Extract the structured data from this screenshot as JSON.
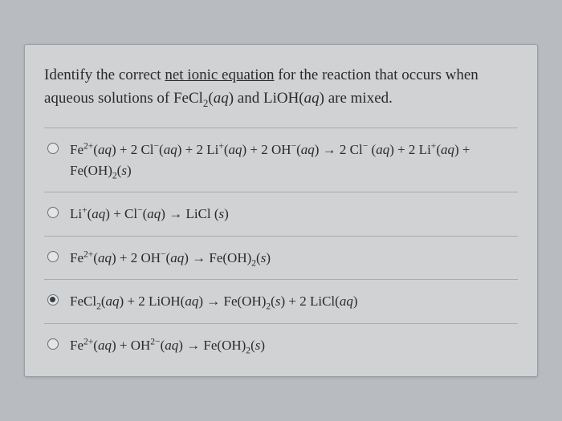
{
  "card": {
    "background_color": "#d0d2d4",
    "border_color": "#9aa0a6",
    "divider_color": "#a8adb2",
    "text_color": "#2a2a2a"
  },
  "page_background": "#b8bbbf",
  "question": {
    "pre": "Identify the correct ",
    "underlined": "net ionic equation",
    "post": " for the reaction that occurs when aqueous solutions of FeCl",
    "sub1": "2",
    "state1_open": "(",
    "state1": "aq",
    "state1_close": ")",
    "and": " and LiOH(",
    "state2": "aq",
    "tail": ") are mixed.",
    "fontsize": 19
  },
  "options": [
    {
      "selected": false,
      "html": "Fe<sup>2+</sup>(<span class='ital'>aq</span>) + 2 Cl<sup>−</sup>(<span class='ital'>aq</span>) + 2 Li<sup>+</sup>(<span class='ital'>aq</span>) + 2 OH<sup>−</sup>(<span class='ital'>aq</span>) → 2 Cl<sup>−</sup> (<span class='ital'>aq</span>) + 2 Li<sup>+</sup>(<span class='ital'>aq</span>) + Fe(OH)<sub>2</sub>(<span class='ital'>s</span>)"
    },
    {
      "selected": false,
      "html": "Li<sup>+</sup>(<span class='ital'>aq</span>) + Cl<sup>−</sup>(<span class='ital'>aq</span>) → LiCl (<span class='ital'>s</span>)"
    },
    {
      "selected": false,
      "html": "Fe<sup>2+</sup>(<span class='ital'>aq</span>) + 2 OH<sup>−</sup>(<span class='ital'>aq</span>) → Fe(OH)<sub>2</sub>(<span class='ital'>s</span>)"
    },
    {
      "selected": true,
      "html": "FeCl<sub>2</sub>(<span class='ital'>aq</span>) + 2 LiOH(<span class='ital'>aq</span>) → Fe(OH)<sub>2</sub>(<span class='ital'>s</span>) + 2 LiCl(<span class='ital'>aq</span>)"
    },
    {
      "selected": false,
      "html": "Fe<sup>2+</sup>(<span class='ital'>aq</span>) + OH<sup>2−</sup>(<span class='ital'>aq</span>) → Fe(OH)<sub>2</sub>(<span class='ital'>s</span>)"
    }
  ],
  "option_fontsize": 17,
  "radio_border": "#6b7075",
  "radio_fill": "#3a3f44"
}
